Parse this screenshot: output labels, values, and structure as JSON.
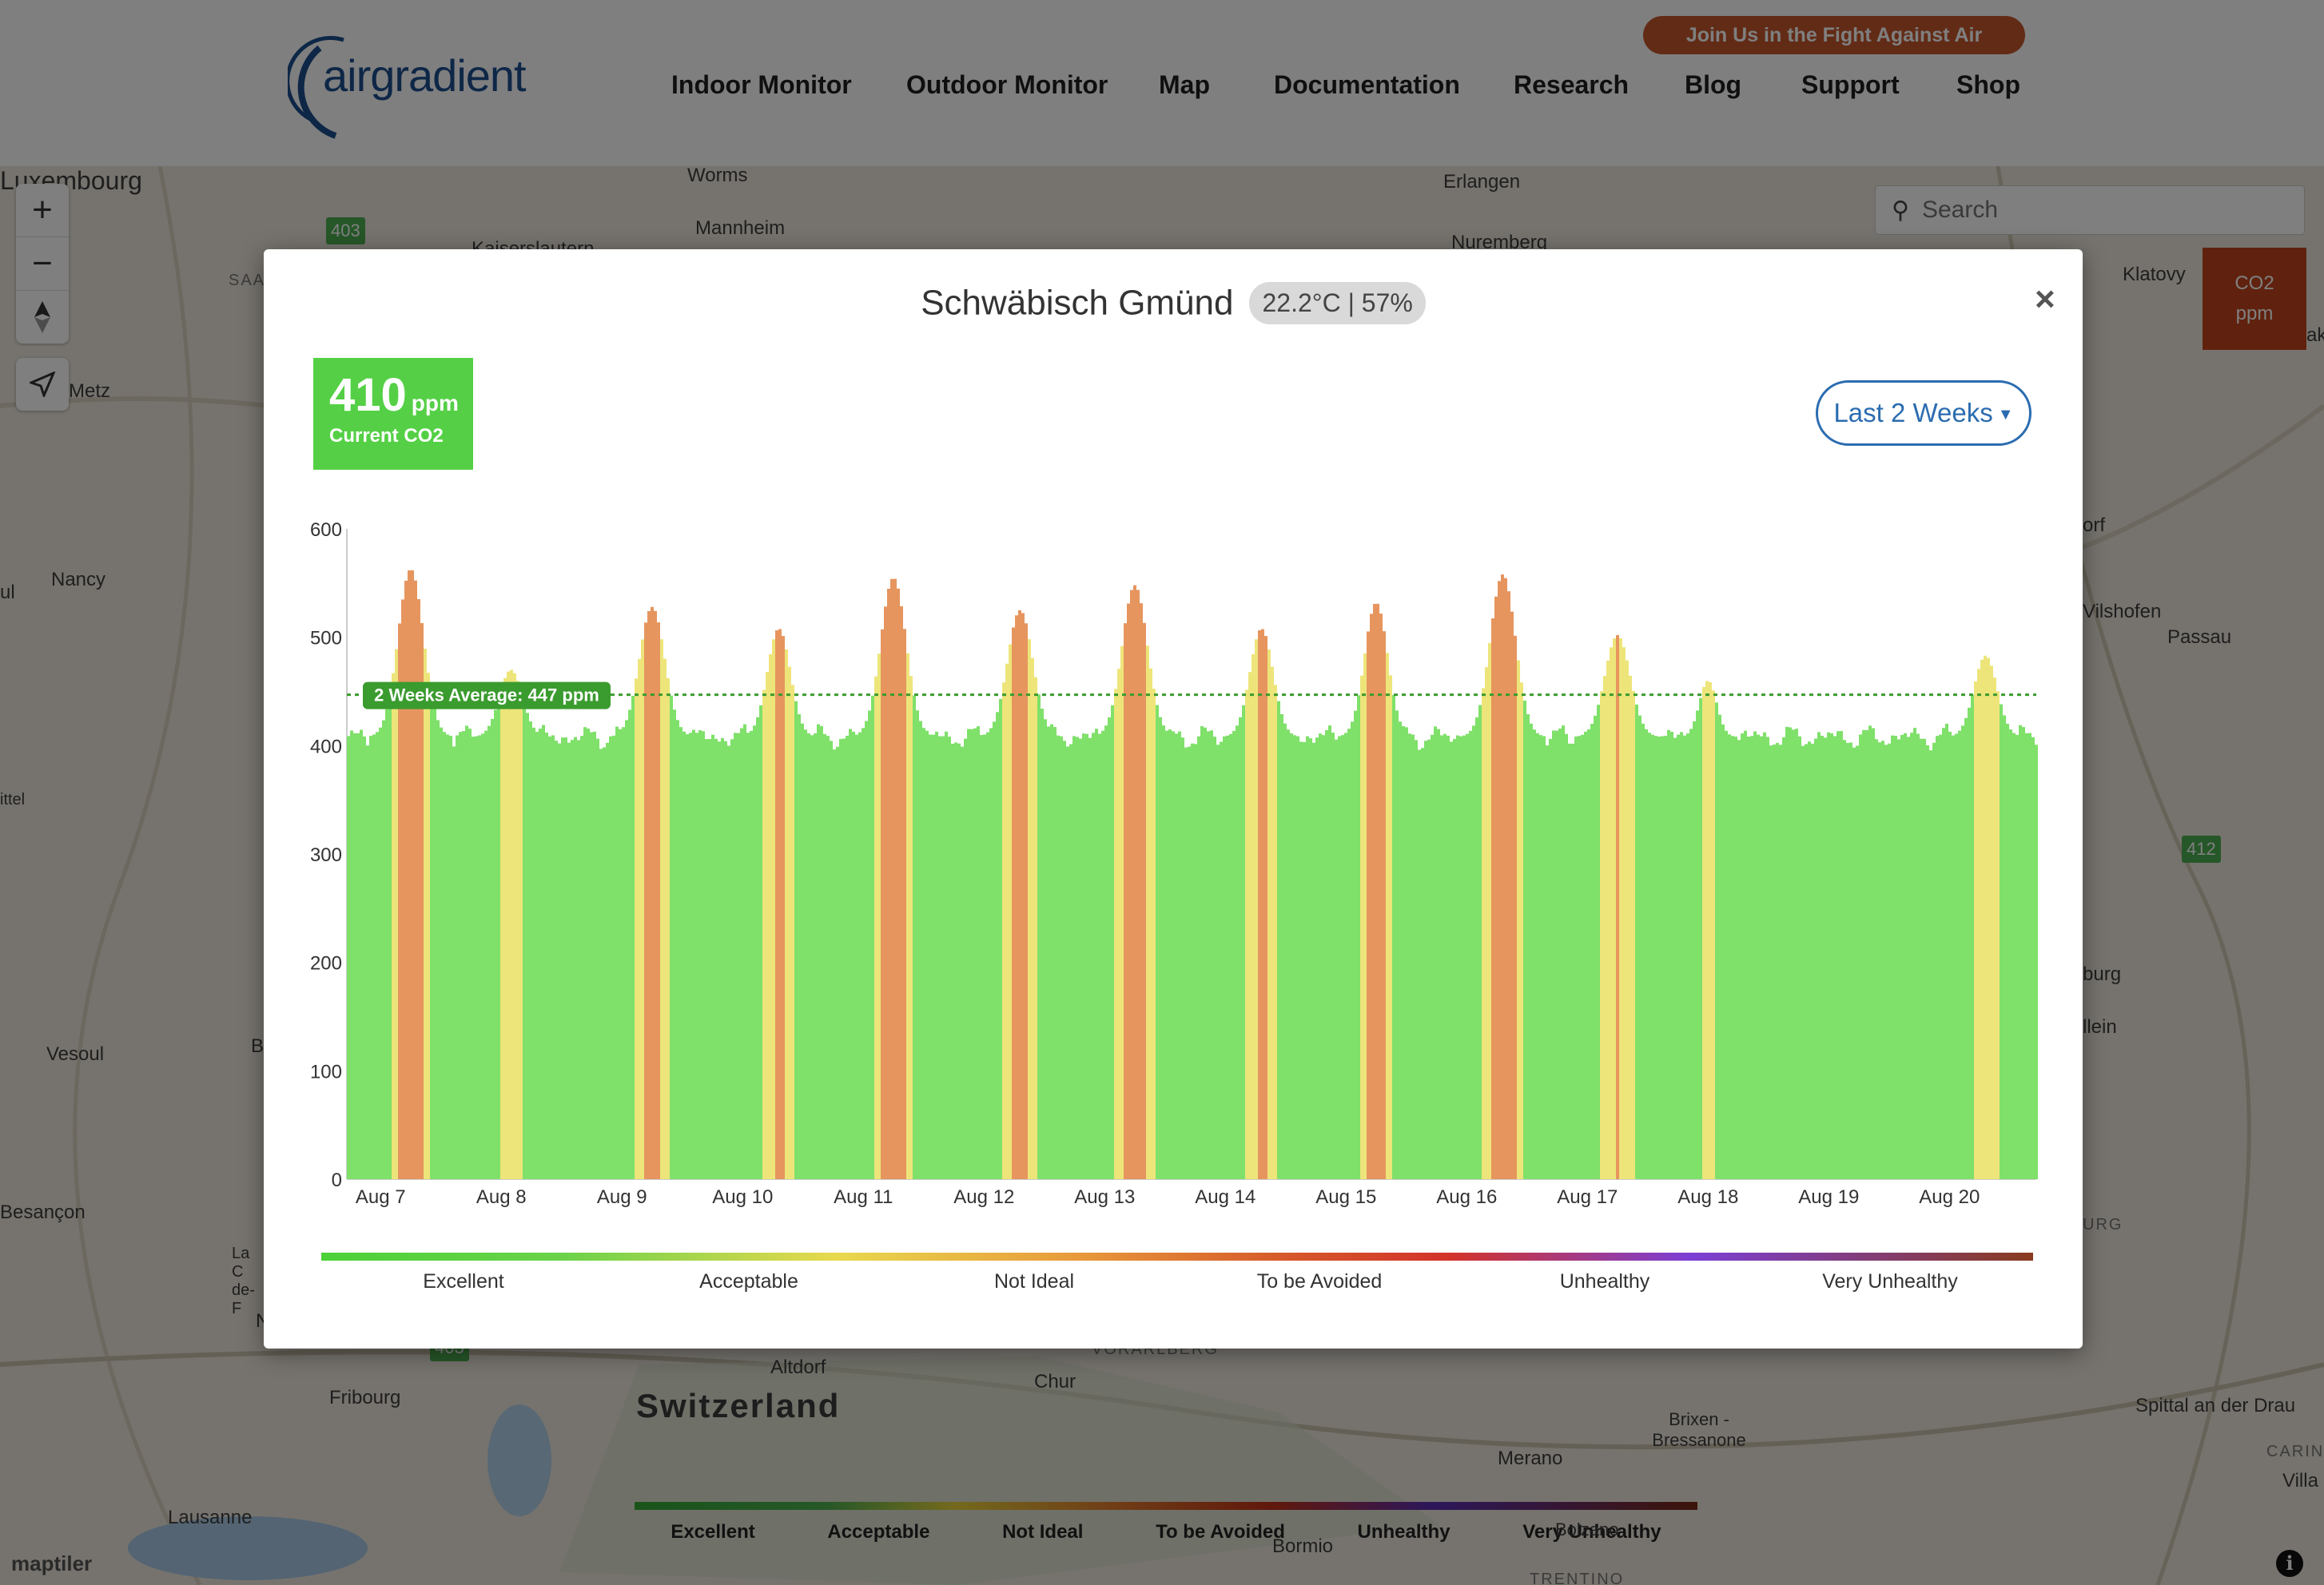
{
  "header": {
    "logo_text": "airgradient",
    "cta": "Join Us in the Fight Against Air Pollution",
    "nav": [
      "Indoor Monitor",
      "Outdoor Monitor",
      "Map",
      "Documentation",
      "Research",
      "Blog",
      "Support",
      "Shop"
    ]
  },
  "map": {
    "places": [
      "Luxembourg",
      "Metz",
      "Nancy",
      "Vesoul",
      "Besançon",
      "Fribourg",
      "Lausanne",
      "Mannheim",
      "Worms",
      "Kaiserslautern",
      "Erlangen",
      "Nuremberg",
      "Klatovy",
      "Vilshofen",
      "Passau",
      "Switzerland",
      "Altdorf",
      "Chur",
      "Merano",
      "Bormio",
      "Brixen - Bressanone",
      "Spittal an der Drau",
      "VORARLBERG",
      "SAA",
      "La C de-F",
      "ittel",
      "orf",
      "burg",
      "llein",
      "URG",
      "CARIN",
      "Villa",
      "TRENTINO",
      "rak",
      "ul",
      "B",
      "N"
    ],
    "road_badges": [
      "403",
      "412",
      "403"
    ],
    "search_placeholder": "Search",
    "co2_chip": [
      "CO2",
      "ppm"
    ],
    "legend": [
      "Excellent",
      "Acceptable",
      "Not Ideal",
      "To be Avoided",
      "Unhealthy",
      "Very Unhealthy",
      "Bolzano"
    ],
    "attribution": "maptiler",
    "zoom_in": "+",
    "zoom_out": "−",
    "info": "i"
  },
  "modal": {
    "location": "Schwäbisch Gmünd",
    "temp_humidity": "22.2°C | 57%",
    "close": "×",
    "current_value": "410",
    "current_unit": "ppm",
    "current_label": "Current CO2",
    "range_label": "Last 2 Weeks",
    "legend": [
      "Excellent",
      "Acceptable",
      "Not Ideal",
      "To be Avoided",
      "Unhealthy",
      "Very Unhealthy"
    ]
  },
  "colors": {
    "excellent": "#7fe06a",
    "acceptable": "#ede57a",
    "not_ideal": "#e6955e",
    "average_line": "#3a9b2e",
    "accent": "#2b6cb0"
  },
  "chart_data": {
    "type": "area",
    "ylim": [
      0,
      600
    ],
    "yticks": [
      0,
      100,
      200,
      300,
      400,
      500,
      600
    ],
    "x_labels": [
      "Aug 7",
      "Aug 8",
      "Aug 9",
      "Aug 10",
      "Aug 11",
      "Aug 12",
      "Aug 13",
      "Aug 14",
      "Aug 15",
      "Aug 16",
      "Aug 17",
      "Aug 18",
      "Aug 19",
      "Aug 20"
    ],
    "average": 447,
    "average_label": "2 Weeks Average: 447 ppm",
    "x_unit": "days from Aug 7 00:00",
    "x_range": [
      -0.28,
      13.72
    ],
    "baseline_ppm": 408,
    "thresholds": {
      "excellent_max": 450,
      "acceptable_max": 500
    },
    "peaks": [
      {
        "day": 0.25,
        "peak": 563,
        "width": 0.22
      },
      {
        "day": 1.08,
        "peak": 470,
        "width": 0.2
      },
      {
        "day": 2.25,
        "peak": 528,
        "width": 0.22
      },
      {
        "day": 3.3,
        "peak": 508,
        "width": 0.2
      },
      {
        "day": 4.25,
        "peak": 555,
        "width": 0.22
      },
      {
        "day": 5.3,
        "peak": 525,
        "width": 0.22
      },
      {
        "day": 6.25,
        "peak": 548,
        "width": 0.22
      },
      {
        "day": 7.3,
        "peak": 508,
        "width": 0.2
      },
      {
        "day": 8.25,
        "peak": 532,
        "width": 0.2
      },
      {
        "day": 9.3,
        "peak": 558,
        "width": 0.22
      },
      {
        "day": 10.25,
        "peak": 502,
        "width": 0.22
      },
      {
        "day": 11.0,
        "peak": 460,
        "width": 0.15
      },
      {
        "day": 13.3,
        "peak": 483,
        "width": 0.2
      }
    ]
  }
}
